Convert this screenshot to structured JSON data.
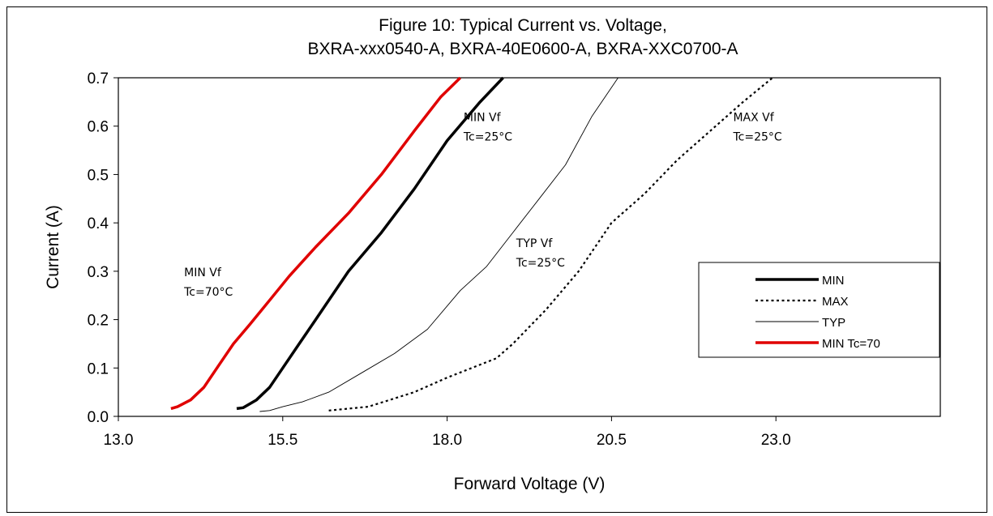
{
  "chart_data": {
    "type": "line",
    "title": [
      "Figure 10:  Typical Current vs. Voltage,",
      "BXRA-xxx0540-A, BXRA-40E0600-A, BXRA-XXC0700-A"
    ],
    "xlabel": "Forward Voltage (V)",
    "ylabel": "Current (A)",
    "xlim": [
      13.0,
      25.5
    ],
    "ylim": [
      0.0,
      0.7
    ],
    "xticks": [
      "13.0",
      "15.5",
      "18.0",
      "20.5",
      "23.0"
    ],
    "xtick_values": [
      13.0,
      15.5,
      18.0,
      20.5,
      23.0
    ],
    "yticks": [
      "0.0",
      "0.1",
      "0.2",
      "0.3",
      "0.4",
      "0.5",
      "0.6",
      "0.7"
    ],
    "ytick_values": [
      0.0,
      0.1,
      0.2,
      0.3,
      0.4,
      0.5,
      0.6,
      0.7
    ],
    "grid": false,
    "legend_position": "right",
    "series": [
      {
        "name": "MIN",
        "color": "#000000",
        "style": "solid-thick",
        "points": [
          [
            14.8,
            0.016
          ],
          [
            14.9,
            0.018
          ],
          [
            15.1,
            0.034
          ],
          [
            15.3,
            0.06
          ],
          [
            15.5,
            0.1
          ],
          [
            15.75,
            0.15
          ],
          [
            16.0,
            0.2
          ],
          [
            16.5,
            0.3
          ],
          [
            17.0,
            0.38
          ],
          [
            17.5,
            0.47
          ],
          [
            18.0,
            0.57
          ],
          [
            18.5,
            0.65
          ],
          [
            18.85,
            0.7
          ]
        ]
      },
      {
        "name": "MAX",
        "color": "#000000",
        "style": "dotted",
        "points": [
          [
            16.2,
            0.012
          ],
          [
            16.8,
            0.02
          ],
          [
            17.5,
            0.05
          ],
          [
            18.0,
            0.08
          ],
          [
            18.75,
            0.12
          ],
          [
            19.0,
            0.15
          ],
          [
            19.5,
            0.22
          ],
          [
            20.0,
            0.3
          ],
          [
            20.5,
            0.4
          ],
          [
            21.0,
            0.46
          ],
          [
            21.5,
            0.53
          ],
          [
            22.0,
            0.59
          ],
          [
            22.5,
            0.65
          ],
          [
            22.95,
            0.7
          ]
        ]
      },
      {
        "name": "TYP",
        "color": "#000000",
        "style": "thin",
        "points": [
          [
            15.15,
            0.01
          ],
          [
            15.3,
            0.012
          ],
          [
            15.5,
            0.02
          ],
          [
            15.8,
            0.03
          ],
          [
            16.2,
            0.05
          ],
          [
            16.7,
            0.09
          ],
          [
            17.2,
            0.13
          ],
          [
            17.7,
            0.18
          ],
          [
            18.2,
            0.26
          ],
          [
            18.6,
            0.31
          ],
          [
            19.0,
            0.38
          ],
          [
            19.4,
            0.45
          ],
          [
            19.8,
            0.52
          ],
          [
            20.2,
            0.62
          ],
          [
            20.6,
            0.7
          ]
        ]
      },
      {
        "name": "MIN Tc=70",
        "color": "#e00000",
        "style": "solid-thick",
        "points": [
          [
            13.8,
            0.016
          ],
          [
            13.9,
            0.02
          ],
          [
            14.1,
            0.034
          ],
          [
            14.3,
            0.06
          ],
          [
            14.55,
            0.11
          ],
          [
            14.75,
            0.15
          ],
          [
            15.0,
            0.19
          ],
          [
            15.3,
            0.24
          ],
          [
            15.6,
            0.29
          ],
          [
            16.0,
            0.35
          ],
          [
            16.5,
            0.42
          ],
          [
            17.0,
            0.5
          ],
          [
            17.5,
            0.59
          ],
          [
            17.9,
            0.66
          ],
          [
            18.2,
            0.7
          ]
        ]
      }
    ],
    "annotations": [
      {
        "lines": [
          "MIN Vf",
          "Tc=25°C"
        ],
        "x": 18.25,
        "y": 0.61
      },
      {
        "lines": [
          "MAX Vf",
          "Tc=25°C"
        ],
        "x": 22.35,
        "y": 0.61
      },
      {
        "lines": [
          "TYP Vf",
          " Tc=25°C"
        ],
        "x": 19.05,
        "y": 0.35
      },
      {
        "lines": [
          "MIN Vf",
          "Tc=70°C"
        ],
        "x": 14.0,
        "y": 0.29
      }
    ]
  }
}
